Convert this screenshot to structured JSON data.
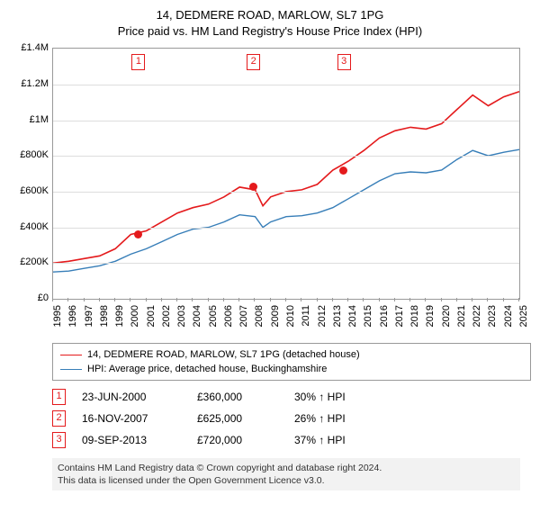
{
  "title1": "14, DEDMERE ROAD, MARLOW, SL7 1PG",
  "title2": "Price paid vs. HM Land Registry's House Price Index (HPI)",
  "chart": {
    "type": "line",
    "x_range": [
      1995,
      2025
    ],
    "y_range": [
      0,
      1400000
    ],
    "y_ticks": [
      0,
      200000,
      400000,
      600000,
      800000,
      1000000,
      1200000,
      1400000
    ],
    "y_tick_labels": [
      "£0",
      "£200K",
      "£400K",
      "£600K",
      "£800K",
      "£1M",
      "£1.2M",
      "£1.4M"
    ],
    "x_ticks": [
      1995,
      1996,
      1997,
      1998,
      1999,
      2000,
      2001,
      2002,
      2003,
      2004,
      2005,
      2006,
      2007,
      2008,
      2009,
      2010,
      2011,
      2012,
      2013,
      2014,
      2015,
      2016,
      2017,
      2018,
      2019,
      2020,
      2021,
      2022,
      2023,
      2024,
      2025
    ],
    "grid_color": "#dddddd",
    "axis_color": "#999999",
    "series": [
      {
        "name": "property",
        "color": "#e41a1c",
        "width": 1.6,
        "points": [
          [
            1995,
            200000
          ],
          [
            1996,
            210000
          ],
          [
            1997,
            225000
          ],
          [
            1998,
            240000
          ],
          [
            1999,
            280000
          ],
          [
            2000,
            360000
          ],
          [
            2001,
            380000
          ],
          [
            2002,
            430000
          ],
          [
            2003,
            480000
          ],
          [
            2004,
            510000
          ],
          [
            2005,
            530000
          ],
          [
            2006,
            570000
          ],
          [
            2007,
            625000
          ],
          [
            2008,
            610000
          ],
          [
            2008.5,
            520000
          ],
          [
            2009,
            570000
          ],
          [
            2010,
            600000
          ],
          [
            2011,
            610000
          ],
          [
            2012,
            640000
          ],
          [
            2013,
            720000
          ],
          [
            2014,
            770000
          ],
          [
            2015,
            830000
          ],
          [
            2016,
            900000
          ],
          [
            2017,
            940000
          ],
          [
            2018,
            960000
          ],
          [
            2019,
            950000
          ],
          [
            2020,
            980000
          ],
          [
            2021,
            1060000
          ],
          [
            2022,
            1140000
          ],
          [
            2023,
            1080000
          ],
          [
            2024,
            1130000
          ],
          [
            2025,
            1160000
          ]
        ]
      },
      {
        "name": "hpi",
        "color": "#377eb8",
        "width": 1.4,
        "points": [
          [
            1995,
            150000
          ],
          [
            1996,
            155000
          ],
          [
            1997,
            170000
          ],
          [
            1998,
            185000
          ],
          [
            1999,
            210000
          ],
          [
            2000,
            250000
          ],
          [
            2001,
            280000
          ],
          [
            2002,
            320000
          ],
          [
            2003,
            360000
          ],
          [
            2004,
            390000
          ],
          [
            2005,
            400000
          ],
          [
            2006,
            430000
          ],
          [
            2007,
            470000
          ],
          [
            2008,
            460000
          ],
          [
            2008.5,
            400000
          ],
          [
            2009,
            430000
          ],
          [
            2010,
            460000
          ],
          [
            2011,
            465000
          ],
          [
            2012,
            480000
          ],
          [
            2013,
            510000
          ],
          [
            2014,
            560000
          ],
          [
            2015,
            610000
          ],
          [
            2016,
            660000
          ],
          [
            2017,
            700000
          ],
          [
            2018,
            710000
          ],
          [
            2019,
            705000
          ],
          [
            2020,
            720000
          ],
          [
            2021,
            780000
          ],
          [
            2022,
            830000
          ],
          [
            2023,
            800000
          ],
          [
            2024,
            820000
          ],
          [
            2025,
            835000
          ]
        ]
      }
    ],
    "markers": [
      {
        "x": 2000.47,
        "y": 360000,
        "color": "#e41a1c"
      },
      {
        "x": 2007.87,
        "y": 625000,
        "color": "#e41a1c"
      },
      {
        "x": 2013.69,
        "y": 720000,
        "color": "#e41a1c"
      }
    ],
    "flags": [
      {
        "n": "1",
        "x": 2000.47,
        "color": "#e41a1c"
      },
      {
        "n": "2",
        "x": 2007.87,
        "color": "#e41a1c"
      },
      {
        "n": "3",
        "x": 2013.69,
        "color": "#e41a1c"
      }
    ]
  },
  "legend": {
    "rows": [
      {
        "color": "#e41a1c",
        "text": "14, DEDMERE ROAD, MARLOW, SL7 1PG (detached house)"
      },
      {
        "color": "#377eb8",
        "text": "HPI: Average price, detached house, Buckinghamshire"
      }
    ]
  },
  "events": [
    {
      "n": "1",
      "color": "#e41a1c",
      "date": "23-JUN-2000",
      "price": "£360,000",
      "hpi": "30% ↑ HPI"
    },
    {
      "n": "2",
      "color": "#e41a1c",
      "date": "16-NOV-2007",
      "price": "£625,000",
      "hpi": "26% ↑ HPI"
    },
    {
      "n": "3",
      "color": "#e41a1c",
      "date": "09-SEP-2013",
      "price": "£720,000",
      "hpi": "37% ↑ HPI"
    }
  ],
  "footer1": "Contains HM Land Registry data © Crown copyright and database right 2024.",
  "footer2": "This data is licensed under the Open Government Licence v3.0."
}
